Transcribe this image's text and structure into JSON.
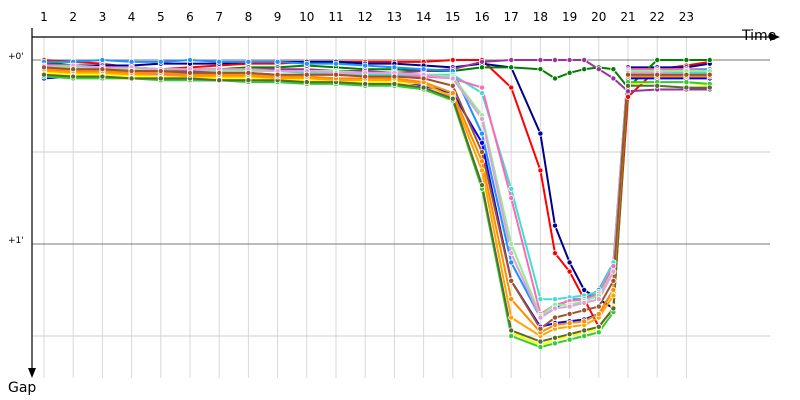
{
  "chart_data": {
    "type": "line",
    "title": "",
    "xlabel": "Time",
    "ylabel": "Gap",
    "x_tick_labels": [
      "1",
      "2",
      "3",
      "4",
      "5",
      "6",
      "7",
      "8",
      "9",
      "10",
      "11",
      "12",
      "13",
      "14",
      "15",
      "16",
      "17",
      "18",
      "19",
      "20",
      "21",
      "22",
      "23"
    ],
    "x": [
      1,
      2,
      3,
      4,
      5,
      6,
      7,
      8,
      9,
      10,
      11,
      12,
      13,
      14,
      15,
      16,
      17,
      18,
      18.5,
      19,
      19.5,
      20,
      20.5,
      21,
      22,
      23,
      23.8
    ],
    "y_axis": {
      "inverted": true,
      "unit": "minutes",
      "ylim": [
        -0.05,
        1.55
      ],
      "major_ticks": [
        0,
        1
      ],
      "major_tick_labels": [
        "+0'",
        "+1'"
      ],
      "minor_ticks": [
        0.5,
        1.5
      ]
    },
    "grid": true,
    "legend": "none",
    "series": [
      {
        "color": "#ff0000",
        "values": [
          0.0,
          0.01,
          0.02,
          0.04,
          0.05,
          0.04,
          0.03,
          0.02,
          0.02,
          0.01,
          0.01,
          0.01,
          0.01,
          0.01,
          0.0,
          0.0,
          0.15,
          0.6,
          1.05,
          1.15,
          1.3,
          1.45,
          1.35,
          0.2,
          0.05,
          0.03,
          0.01
        ]
      },
      {
        "color": "#00008b",
        "values": [
          0.02,
          0.03,
          0.03,
          0.03,
          0.02,
          0.02,
          0.02,
          0.01,
          0.01,
          0.01,
          0.01,
          0.02,
          0.02,
          0.03,
          0.04,
          0.02,
          0.04,
          0.4,
          0.9,
          1.1,
          1.25,
          1.3,
          1.35,
          0.04,
          0.04,
          0.04,
          0.02
        ]
      },
      {
        "color": "#008000",
        "values": [
          0.01,
          0.03,
          0.04,
          0.05,
          0.06,
          0.05,
          0.05,
          0.04,
          0.04,
          0.03,
          0.04,
          0.05,
          0.05,
          0.06,
          0.06,
          0.04,
          0.04,
          0.05,
          0.1,
          0.07,
          0.05,
          0.04,
          0.05,
          0.15,
          0.0,
          0.0,
          0.0
        ]
      },
      {
        "color": "#993399",
        "values": [
          0.02,
          0.04,
          0.05,
          0.06,
          0.07,
          0.06,
          0.06,
          0.05,
          0.05,
          0.05,
          0.06,
          0.06,
          0.07,
          0.06,
          0.05,
          0.01,
          0.0,
          0.0,
          0.0,
          0.0,
          0.0,
          0.05,
          0.1,
          0.17,
          0.16,
          0.16,
          0.16
        ]
      },
      {
        "color": "#1e90ff",
        "values": [
          0.01,
          0.01,
          0.0,
          0.01,
          0.01,
          0.0,
          0.01,
          0.01,
          0.01,
          0.02,
          0.02,
          0.03,
          0.04,
          0.05,
          0.06,
          0.4,
          1.1,
          1.4,
          1.35,
          1.3,
          1.3,
          1.25,
          1.1,
          0.06,
          0.05,
          0.05,
          0.05
        ]
      },
      {
        "color": "#40e0d0",
        "values": [
          0.04,
          0.05,
          0.06,
          0.06,
          0.07,
          0.07,
          0.07,
          0.06,
          0.06,
          0.07,
          0.08,
          0.08,
          0.08,
          0.08,
          0.08,
          0.18,
          0.7,
          1.3,
          1.3,
          1.29,
          1.28,
          1.26,
          1.1,
          0.05,
          0.06,
          0.07,
          0.07
        ]
      },
      {
        "color": "#ff69b4",
        "values": [
          0.05,
          0.05,
          0.06,
          0.07,
          0.08,
          0.08,
          0.07,
          0.07,
          0.08,
          0.08,
          0.08,
          0.09,
          0.09,
          0.09,
          0.1,
          0.15,
          0.75,
          1.38,
          1.33,
          1.31,
          1.3,
          1.27,
          1.12,
          0.05,
          0.05,
          0.05,
          0.06
        ]
      },
      {
        "color": "#0000ff",
        "values": [
          0.1,
          0.09,
          0.09,
          0.1,
          0.1,
          0.11,
          0.11,
          0.1,
          0.12,
          0.12,
          0.13,
          0.13,
          0.13,
          0.14,
          0.18,
          0.45,
          1.2,
          1.45,
          1.43,
          1.42,
          1.41,
          1.38,
          1.25,
          0.1,
          0.1,
          0.1,
          0.1
        ]
      },
      {
        "color": "#ffa500",
        "values": [
          0.06,
          0.07,
          0.07,
          0.08,
          0.09,
          0.09,
          0.09,
          0.09,
          0.1,
          0.1,
          0.11,
          0.11,
          0.11,
          0.13,
          0.2,
          0.6,
          1.4,
          1.5,
          1.46,
          1.45,
          1.44,
          1.4,
          1.28,
          0.08,
          0.08,
          0.08,
          0.08
        ]
      },
      {
        "color": "#ffff00",
        "values": [
          0.07,
          0.08,
          0.08,
          0.09,
          0.09,
          0.1,
          0.1,
          0.1,
          0.11,
          0.11,
          0.12,
          0.12,
          0.12,
          0.15,
          0.22,
          0.7,
          1.48,
          1.55,
          1.52,
          1.5,
          1.48,
          1.46,
          1.34,
          0.13,
          0.12,
          0.12,
          0.14
        ]
      },
      {
        "color": "#32cd32",
        "values": [
          0.09,
          0.1,
          0.1,
          0.1,
          0.11,
          0.11,
          0.11,
          0.12,
          0.12,
          0.13,
          0.13,
          0.14,
          0.14,
          0.16,
          0.22,
          0.7,
          1.5,
          1.56,
          1.54,
          1.52,
          1.5,
          1.48,
          1.37,
          0.12,
          0.12,
          0.12,
          0.13
        ]
      },
      {
        "color": "#556b2f",
        "values": [
          0.08,
          0.09,
          0.09,
          0.1,
          0.1,
          0.1,
          0.11,
          0.11,
          0.11,
          0.12,
          0.12,
          0.13,
          0.13,
          0.15,
          0.21,
          0.68,
          1.47,
          1.53,
          1.51,
          1.49,
          1.47,
          1.45,
          1.35,
          0.14,
          0.14,
          0.15,
          0.15
        ]
      },
      {
        "color": "#90ee90",
        "values": [
          0.03,
          0.04,
          0.04,
          0.05,
          0.05,
          0.05,
          0.06,
          0.06,
          0.06,
          0.06,
          0.06,
          0.07,
          0.07,
          0.08,
          0.09,
          0.3,
          1.0,
          1.39,
          1.33,
          1.33,
          1.31,
          1.28,
          1.15,
          0.06,
          0.06,
          0.06,
          0.06
        ]
      },
      {
        "color": "#dda0dd",
        "values": [
          0.03,
          0.03,
          0.04,
          0.04,
          0.05,
          0.05,
          0.05,
          0.05,
          0.06,
          0.06,
          0.07,
          0.07,
          0.07,
          0.08,
          0.1,
          0.32,
          1.05,
          1.4,
          1.35,
          1.34,
          1.32,
          1.3,
          1.15,
          0.07,
          0.07,
          0.08,
          0.08
        ]
      },
      {
        "color": "#ff8c00",
        "values": [
          0.05,
          0.06,
          0.06,
          0.07,
          0.07,
          0.08,
          0.08,
          0.08,
          0.09,
          0.09,
          0.1,
          0.1,
          0.1,
          0.12,
          0.18,
          0.55,
          1.3,
          1.48,
          1.44,
          1.43,
          1.42,
          1.38,
          1.25,
          0.09,
          0.09,
          0.09,
          0.09
        ]
      },
      {
        "color": "#a0522d",
        "values": [
          0.04,
          0.05,
          0.05,
          0.06,
          0.06,
          0.07,
          0.07,
          0.07,
          0.08,
          0.08,
          0.08,
          0.09,
          0.09,
          0.1,
          0.14,
          0.5,
          1.2,
          1.46,
          1.4,
          1.38,
          1.36,
          1.34,
          1.2,
          0.08,
          0.08,
          0.08,
          0.08
        ]
      }
    ]
  }
}
